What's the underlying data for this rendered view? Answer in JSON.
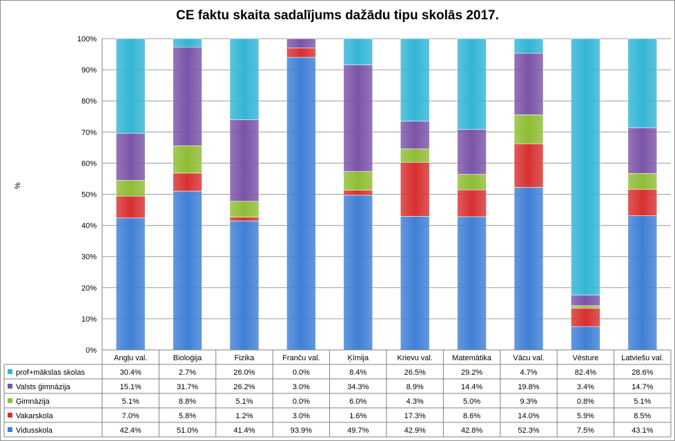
{
  "chart_data": {
    "type": "bar",
    "stacked": true,
    "normalized": true,
    "title": "CE faktu skaita sadalījums dažādu tipu skolās 2017.",
    "ylabel": "%",
    "ylim": [
      0,
      100
    ],
    "yticks": [
      "0%",
      "10%",
      "20%",
      "30%",
      "40%",
      "50%",
      "60%",
      "70%",
      "80%",
      "90%",
      "100%"
    ],
    "grid": true,
    "legend": "data-table",
    "categories": [
      "Angļu val.",
      "Bioloģija",
      "Fizika",
      "Franču val.",
      "Ķīmija",
      "Krievu val.",
      "Matemātika",
      "Vācu val.",
      "Vēsture",
      "Latviešu val."
    ],
    "series": [
      {
        "name": "Vidusskola",
        "color": "#3f7fd6",
        "values": [
          42.4,
          51.0,
          41.4,
          93.9,
          49.7,
          42.9,
          42.8,
          52.3,
          7.5,
          43.1
        ],
        "labels": [
          "42.4%",
          "51.0%",
          "41.4%",
          "93.9%",
          "49.7%",
          "42.9%",
          "42.8%",
          "52.3%",
          "7.5%",
          "43.1%"
        ]
      },
      {
        "name": "Vakarskola",
        "color": "#d83030",
        "values": [
          7.0,
          5.8,
          1.2,
          3.0,
          1.6,
          17.3,
          8.6,
          14.0,
          5.9,
          8.5
        ],
        "labels": [
          "7.0%",
          "5.8%",
          "1.2%",
          "3.0%",
          "1.6%",
          "17.3%",
          "8.6%",
          "14.0%",
          "5.9%",
          "8.5%"
        ]
      },
      {
        "name": "Ģimnāzija",
        "color": "#8fbd34",
        "values": [
          5.1,
          8.8,
          5.1,
          0.0,
          6.0,
          4.3,
          5.0,
          9.3,
          0.8,
          5.1
        ],
        "labels": [
          "5.1%",
          "8.8%",
          "5.1%",
          "0.0%",
          "6.0%",
          "4.3%",
          "5.0%",
          "9.3%",
          "0.8%",
          "5.1%"
        ]
      },
      {
        "name": "Valsts ģimnāzija",
        "color": "#7b54a8",
        "values": [
          15.1,
          31.7,
          26.2,
          3.0,
          34.3,
          8.9,
          14.4,
          19.8,
          3.4,
          14.7
        ],
        "labels": [
          "15.1%",
          "31.7%",
          "26.2%",
          "3.0%",
          "34.3%",
          "8.9%",
          "14.4%",
          "19.8%",
          "3.4%",
          "14.7%"
        ]
      },
      {
        "name": "prof+mākslas skolas",
        "color": "#33b5d6",
        "values": [
          30.4,
          2.7,
          26.0,
          0.0,
          8.4,
          26.5,
          29.2,
          4.7,
          82.4,
          28.6
        ],
        "labels": [
          "30.4%",
          "2.7%",
          "26.0%",
          "0.0%",
          "8.4%",
          "26.5%",
          "29.2%",
          "4.7%",
          "82.4%",
          "28.6%"
        ]
      }
    ],
    "table_row_order": [
      "prof+mākslas skolas",
      "Valsts ģimnāzija",
      "Ģimnāzija",
      "Vakarskola",
      "Vidusskola"
    ]
  }
}
